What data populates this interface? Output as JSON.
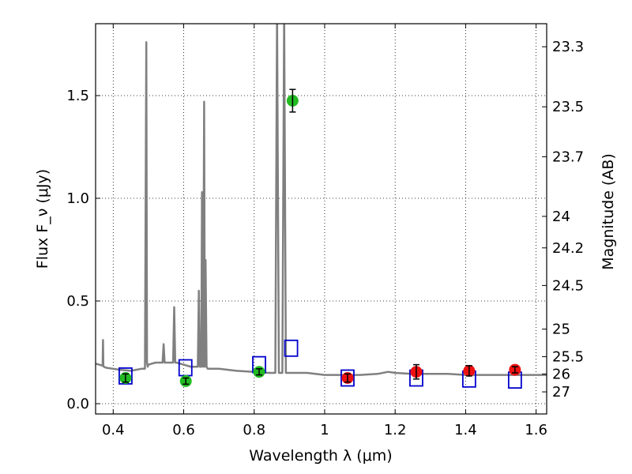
{
  "chart_data": {
    "type": "scatter",
    "xlabel": "Wavelength λ (μm)",
    "ylabel": "Flux F_ν (μJy)",
    "ylabel_right": "Magnitude (AB)",
    "xlim": [
      0.35,
      1.63
    ],
    "ylim": [
      -0.05,
      1.85
    ],
    "grid": true,
    "x_ticks": [
      0.4,
      0.6,
      0.8,
      1.0,
      1.2,
      1.4,
      1.6
    ],
    "x_tick_labels": [
      "0.4",
      "0.6",
      "0.8",
      "1",
      "1.2",
      "1.4",
      "1.6"
    ],
    "y_ticks": [
      0.0,
      0.5,
      1.0,
      1.5
    ],
    "y_tick_labels": [
      "0.0",
      "0.5",
      "1.0",
      "1.5"
    ],
    "mag_ticks": [
      23.3,
      23.5,
      23.7,
      24,
      24.2,
      24.5,
      25,
      25.5,
      26,
      27
    ],
    "mag_tick_labels": [
      "23.3",
      "23.5",
      "23.7",
      "24",
      "24.2",
      "24.5",
      "25",
      "25.5",
      "26",
      "27"
    ],
    "series": [
      {
        "kind": "spectrum",
        "color": "#808080",
        "x": [
          0.35,
          0.36,
          0.37,
          0.371,
          0.372,
          0.373,
          0.38,
          0.4,
          0.42,
          0.45,
          0.48,
          0.49,
          0.494,
          0.496,
          0.498,
          0.5,
          0.52,
          0.54,
          0.543,
          0.546,
          0.55,
          0.57,
          0.573,
          0.576,
          0.58,
          0.6,
          0.62,
          0.64,
          0.643,
          0.646,
          0.65,
          0.652,
          0.655,
          0.658,
          0.66,
          0.662,
          0.665,
          0.668,
          0.67,
          0.7,
          0.75,
          0.8,
          0.84,
          0.86,
          0.865,
          0.87,
          0.875,
          0.88,
          0.885,
          0.89,
          0.895,
          0.9,
          0.95,
          1.0,
          1.05,
          1.1,
          1.15,
          1.18,
          1.2,
          1.25,
          1.3,
          1.35,
          1.4,
          1.45,
          1.5,
          1.55,
          1.6,
          1.63
        ],
        "y": [
          0.195,
          0.19,
          0.185,
          0.31,
          0.185,
          0.18,
          0.175,
          0.17,
          0.165,
          0.16,
          0.17,
          0.17,
          1.76,
          0.2,
          0.18,
          0.19,
          0.2,
          0.2,
          0.29,
          0.2,
          0.2,
          0.2,
          0.47,
          0.2,
          0.2,
          0.19,
          0.18,
          0.18,
          0.55,
          0.18,
          0.18,
          1.03,
          0.18,
          1.47,
          0.18,
          0.7,
          0.18,
          0.17,
          0.17,
          0.17,
          0.16,
          0.155,
          0.15,
          0.15,
          1.9,
          0.15,
          0.15,
          0.15,
          1.9,
          0.15,
          0.15,
          0.15,
          0.15,
          0.14,
          0.14,
          0.14,
          0.145,
          0.155,
          0.15,
          0.145,
          0.145,
          0.145,
          0.14,
          0.14,
          0.14,
          0.14,
          0.14,
          0.14
        ]
      },
      {
        "kind": "model_photometry",
        "marker": "open-square",
        "color": "#0000cc",
        "x": [
          0.435,
          0.605,
          0.814,
          0.905,
          1.065,
          1.26,
          1.41,
          1.54
        ],
        "y": [
          0.135,
          0.175,
          0.19,
          0.27,
          0.125,
          0.125,
          0.12,
          0.115
        ]
      },
      {
        "kind": "hst_acs_photometry",
        "marker": "filled-circle",
        "color": "#22bb22",
        "x": [
          0.435,
          0.606,
          0.814,
          0.909
        ],
        "y": [
          0.125,
          0.11,
          0.155,
          1.475
        ],
        "yerr": [
          0.02,
          0.015,
          0.015,
          0.055
        ]
      },
      {
        "kind": "hst_wfc3_photometry",
        "marker": "filled-circle",
        "color": "#ee1111",
        "x": [
          1.065,
          1.26,
          1.41,
          1.54
        ],
        "y": [
          0.125,
          0.155,
          0.16,
          0.165
        ],
        "yerr": [
          0.02,
          0.035,
          0.025,
          0.015
        ]
      }
    ]
  }
}
